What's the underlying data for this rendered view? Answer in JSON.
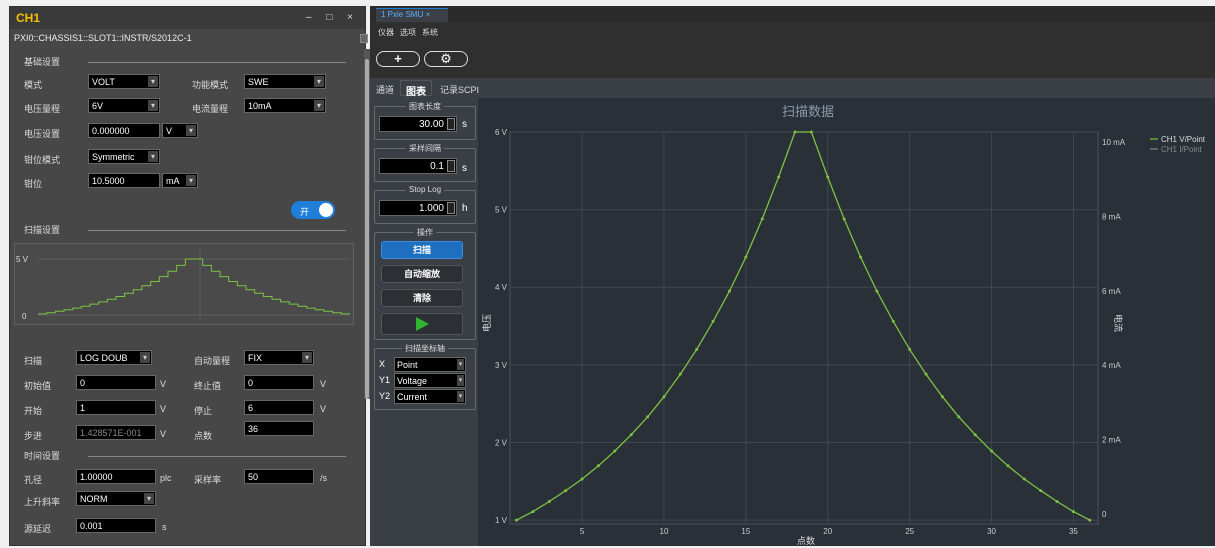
{
  "left_panel": {
    "title": "CH1",
    "window_controls": "– □ ×",
    "resource_path": "PXI0::CHASSIS1::SLOT1::INSTR/S2012C-1",
    "basic_section": "基础设置",
    "mode_label": "模式",
    "mode_value": "VOLT",
    "function_mode_label": "功能模式",
    "function_mode_value": "SWE",
    "voltage_range_label": "电压量程",
    "voltage_range_value": "6V",
    "current_range_label": "电流量程",
    "current_range_value": "10mA",
    "voltage_set_label": "电压设置",
    "voltage_set_value": "0.000000",
    "voltage_unit": "V",
    "clamp_mode_label": "钳位模式",
    "clamp_mode_value": "Symmetric",
    "clamp_label": "钳位",
    "clamp_value": "10.5000",
    "clamp_unit": "mA",
    "output_toggle_label": "开",
    "sweep_section": "扫描设置",
    "sweep_preview": {
      "y_top_label": "5 V",
      "y_bottom_label": "0",
      "steps": 36
    },
    "sweep_label": "扫描",
    "sweep_value": "LOG DOUB",
    "auto_range_label": "自动量程",
    "auto_range_value": "FIX",
    "start_value_label": "初始值",
    "start_value": "0",
    "start_value_unit": "V",
    "stop_value_label": "终止值",
    "stop_value": "0",
    "stop_value_unit": "V",
    "start_label": "开始",
    "start": "1",
    "start_unit": "V",
    "stop_label": "停止",
    "stop": "6",
    "stop_unit": "V",
    "step_label": "步进",
    "step": "1.428571E-001",
    "step_unit": "V",
    "points_label": "点数",
    "points": "36",
    "timing_section": "时间设置",
    "aperture_label": "孔径",
    "aperture": "1.00000",
    "aperture_unit": "plc",
    "sample_rate_label": "采样率",
    "sample_rate": "50",
    "sample_rate_unit": "/s",
    "slew_label": "上升斜率",
    "slew_value": "NORM",
    "source_delay_label": "源延迟",
    "source_delay": "0.001",
    "source_delay_unit": "s"
  },
  "right_panel": {
    "tab_label": "1 Pxie SMU ×",
    "menu": [
      "仪器",
      "选项",
      "系统"
    ],
    "toolbar": {
      "add_label": "+",
      "settings_label": "⚙"
    },
    "view_tabs": [
      "通道",
      "图表",
      "记录SCPI"
    ],
    "active_view_tab": "图表",
    "chart_length_label": "图表长度",
    "chart_length_value": "30.00",
    "chart_length_unit": "s",
    "sample_interval_label": "采样间隔",
    "sample_interval_value": "0.1",
    "sample_interval_unit": "s",
    "stop_log_label": "Stop Log",
    "stop_log_value": "1.000",
    "stop_log_unit": "h",
    "operation_label": "操作",
    "scan_button": "扫描",
    "autoscale_button": "自动缩放",
    "clear_button": "清除",
    "axes_label": "扫描坐标轴",
    "x_axis_key": "X",
    "x_axis_value": "Point",
    "y1_axis_key": "Y1",
    "y1_axis_value": "Voltage",
    "y2_axis_key": "Y2",
    "y2_axis_value": "Current"
  },
  "colors": {
    "accent": "#1e7ed8",
    "series_voltage": "#7cc242",
    "series_current_legend": "#888888",
    "title_yellow": "#f5c000",
    "play_green": "#2fb52f"
  },
  "chart_data": {
    "type": "line",
    "title": "扫描数据",
    "xlabel": "点数",
    "ylabel": "电压",
    "y2label": "电流",
    "x_ticks": [
      "5",
      "10",
      "15",
      "20",
      "25",
      "30",
      "35"
    ],
    "y_ticks": [
      "1 V",
      "2 V",
      "3 V",
      "4 V",
      "5 V",
      "6 V"
    ],
    "y2_ticks": [
      "0",
      "2 mA",
      "4 mA",
      "6 mA",
      "8 mA",
      "10 mA"
    ],
    "xlim": [
      0.6,
      36.5
    ],
    "ylim": [
      0.95,
      6.0
    ],
    "legend": [
      "CH1 V/Point",
      "CH1 I/Point"
    ],
    "legend_position": "top-right",
    "grid": true,
    "series": [
      {
        "name": "CH1 V/Point",
        "x": [
          1,
          2,
          3,
          4,
          5,
          6,
          7,
          8,
          9,
          10,
          11,
          12,
          13,
          14,
          15,
          16,
          17,
          18,
          19,
          20,
          21,
          22,
          23,
          24,
          25,
          26,
          27,
          28,
          29,
          30,
          31,
          32,
          33,
          34,
          35,
          36
        ],
        "y": [
          1.0,
          1.11,
          1.24,
          1.38,
          1.53,
          1.7,
          1.89,
          2.1,
          2.33,
          2.59,
          2.88,
          3.2,
          3.56,
          3.95,
          4.39,
          4.88,
          5.42,
          6.0,
          6.0,
          5.42,
          4.88,
          4.39,
          3.95,
          3.56,
          3.2,
          2.88,
          2.59,
          2.33,
          2.1,
          1.89,
          1.7,
          1.53,
          1.38,
          1.24,
          1.11,
          1.0
        ]
      }
    ]
  }
}
